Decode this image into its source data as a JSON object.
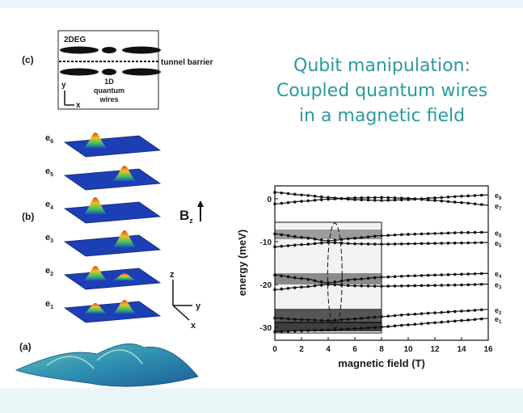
{
  "title_lines": [
    "Qubit manipulation:",
    "Coupled quantum wires",
    "in a magnetic field"
  ],
  "panel_c": {
    "label": "(c)",
    "top_label": "2DEG",
    "barrier_label": "tunnel barrier",
    "wires_label": [
      "1D",
      "quantum",
      "wires"
    ],
    "axis_y": "y",
    "axis_x": "x"
  },
  "panel_b": {
    "label": "(b)",
    "states": [
      {
        "name": "e",
        "sub": "6"
      },
      {
        "name": "e",
        "sub": "5"
      },
      {
        "name": "e",
        "sub": "4"
      },
      {
        "name": "e",
        "sub": "3"
      },
      {
        "name": "e",
        "sub": "2"
      },
      {
        "name": "e",
        "sub": "1"
      }
    ],
    "field_label": "B",
    "field_sub": "z",
    "axes": {
      "z": "z",
      "y": "y",
      "x": "x"
    }
  },
  "panel_a": {
    "label": "(a)"
  },
  "chart_data": {
    "type": "line",
    "xlabel": "magnetic field (T)",
    "ylabel": "energy (meV)",
    "xlim": [
      0,
      16
    ],
    "ylim": [
      -33,
      3
    ],
    "x_ticks": [
      0,
      2,
      4,
      6,
      8,
      10,
      12,
      14,
      16
    ],
    "y_ticks": [
      0,
      -10,
      -20,
      -30
    ],
    "inset_range_T": [
      0,
      8
    ],
    "highlight_T": 4.5,
    "series": [
      {
        "name": "e8",
        "label": "e",
        "sub": "8",
        "x": [
          0,
          2,
          4,
          6,
          8,
          10,
          12,
          14,
          16
        ],
        "values": [
          1.5,
          0.9,
          0.3,
          -0.2,
          -0.4,
          -0.2,
          0.2,
          0.6,
          0.9
        ]
      },
      {
        "name": "e7",
        "label": "e",
        "sub": "7",
        "x": [
          0,
          2,
          4,
          6,
          8,
          10,
          12,
          14,
          16
        ],
        "values": [
          -1.2,
          -0.6,
          -0.1,
          0.2,
          0.3,
          0.1,
          -0.4,
          -0.9,
          -1.5
        ]
      },
      {
        "name": "e6",
        "label": "e",
        "sub": "6",
        "x": [
          0,
          2,
          4,
          6,
          8,
          10,
          12,
          14,
          16
        ],
        "values": [
          -8.2,
          -9.0,
          -9.8,
          -9.2,
          -8.6,
          -8.3,
          -8.1,
          -7.9,
          -7.8
        ]
      },
      {
        "name": "e5",
        "label": "e",
        "sub": "5",
        "x": [
          0,
          2,
          4,
          6,
          8,
          10,
          12,
          14,
          16
        ],
        "values": [
          -11.2,
          -10.7,
          -10.2,
          -10.5,
          -10.6,
          -10.5,
          -10.4,
          -10.3,
          -10.2
        ]
      },
      {
        "name": "e4",
        "label": "e",
        "sub": "4",
        "x": [
          0,
          2,
          4,
          6,
          8,
          10,
          12,
          14,
          16
        ],
        "values": [
          -17.8,
          -18.6,
          -19.6,
          -18.8,
          -18.3,
          -18.0,
          -17.8,
          -17.6,
          -17.4
        ]
      },
      {
        "name": "e3",
        "label": "e",
        "sub": "3",
        "x": [
          0,
          2,
          4,
          6,
          8,
          10,
          12,
          14,
          16
        ],
        "values": [
          -21.2,
          -20.6,
          -20.0,
          -20.3,
          -20.4,
          -20.3,
          -20.2,
          -20.1,
          -19.9
        ]
      },
      {
        "name": "e2",
        "label": "e",
        "sub": "2",
        "x": [
          0,
          2,
          4,
          6,
          8,
          10,
          12,
          14,
          16
        ],
        "values": [
          -27.8,
          -28.2,
          -28.4,
          -28.0,
          -27.5,
          -27.0,
          -26.6,
          -26.2,
          -25.8
        ]
      },
      {
        "name": "e1",
        "label": "e",
        "sub": "1",
        "x": [
          0,
          2,
          4,
          6,
          8,
          10,
          12,
          14,
          16
        ],
        "values": [
          -31.0,
          -30.8,
          -30.6,
          -30.3,
          -29.9,
          -29.4,
          -28.9,
          -28.4,
          -27.9
        ]
      }
    ]
  }
}
